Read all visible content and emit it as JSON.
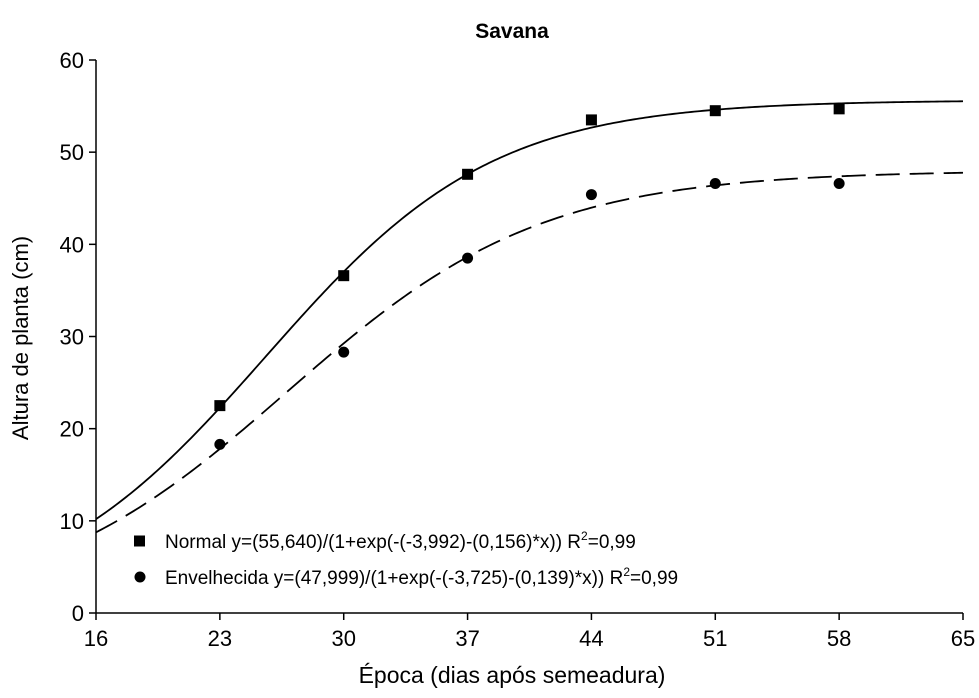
{
  "chart_data": {
    "type": "scatter",
    "title": "Savana",
    "xlabel": "Época (dias após semeadura)",
    "ylabel": "Altura de planta (cm)",
    "xlim": [
      16,
      65
    ],
    "ylim": [
      0,
      60
    ],
    "xticks": [
      16,
      23,
      30,
      37,
      44,
      51,
      58,
      65
    ],
    "yticks": [
      0,
      10,
      20,
      30,
      40,
      50,
      60
    ],
    "grid": false,
    "legend_position": "bottom-left",
    "series": [
      {
        "name": "Normal",
        "marker": "square",
        "line_style": "solid",
        "legend_text": "Normal y=(55,640)/(1+exp(-(-3,992)-(0,156)*x)) R",
        "r2_sup": "2",
        "r2_value": "=0,99",
        "model": {
          "a": 55.64,
          "b": -3.992,
          "c": 0.156
        },
        "x": [
          23,
          30,
          37,
          44,
          51,
          58
        ],
        "y": [
          22.5,
          36.6,
          47.6,
          53.5,
          54.5,
          54.7
        ]
      },
      {
        "name": "Envelhecida",
        "marker": "circle",
        "line_style": "dashed",
        "legend_text": "Envelhecida y=(47,999)/(1+exp(-(-3,725)-(0,139)*x)) R",
        "r2_sup": "2",
        "r2_value": "=0,99",
        "model": {
          "a": 47.999,
          "b": -3.725,
          "c": 0.139
        },
        "x": [
          23,
          30,
          37,
          44,
          51,
          58
        ],
        "y": [
          18.3,
          28.3,
          38.5,
          45.4,
          46.6,
          46.6
        ]
      }
    ]
  }
}
